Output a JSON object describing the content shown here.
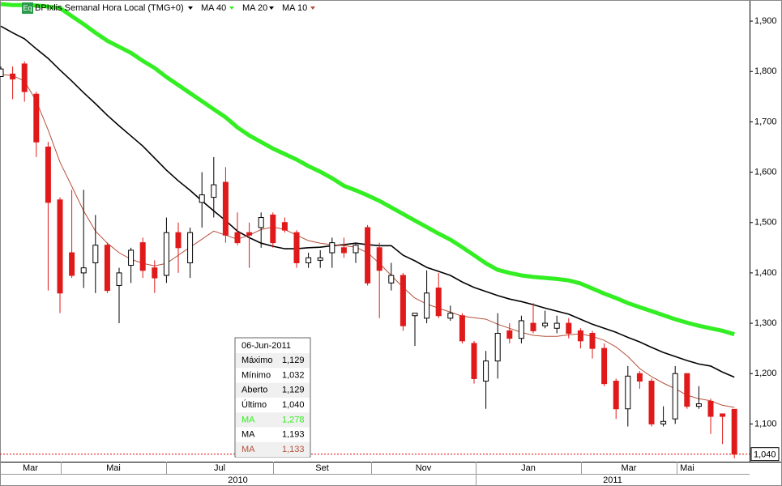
{
  "chart_data": {
    "type": "candlestick",
    "title": "BPIxlis Semanal Hora Local (TMG+0)",
    "badge": "Eq",
    "ylim": [
      1025,
      1942
    ],
    "yticks": [
      {
        "value": 1100,
        "label": "1,100"
      },
      {
        "value": 1200,
        "label": "1,200"
      },
      {
        "value": 1300,
        "label": "1,300"
      },
      {
        "value": 1400,
        "label": "1,400"
      },
      {
        "value": 1500,
        "label": "1,500"
      },
      {
        "value": 1600,
        "label": "1,600"
      },
      {
        "value": 1700,
        "label": "1,700"
      },
      {
        "value": 1800,
        "label": "1,800"
      },
      {
        "value": 1900,
        "label": "1,900"
      }
    ],
    "month_labels": [
      "Mar",
      "Mai",
      "Jul",
      "Set",
      "Nov",
      "Jan",
      "Mar",
      "Mai"
    ],
    "year_labels": [
      "2010",
      "2011"
    ],
    "up_color": "#ffffff",
    "down_color": "#e0191a",
    "open": [
      1790,
      1795,
      1815,
      1755,
      1650,
      1545,
      1440,
      1400,
      1420,
      1455,
      1375,
      1415,
      1460,
      1410,
      1395,
      1480,
      1420,
      1540,
      1550,
      1580,
      1480,
      1480,
      1490,
      1515,
      1500,
      1480,
      1420,
      1425,
      1440,
      1450,
      1440,
      1490,
      1450,
      1380,
      1395,
      1315,
      1310,
      1370,
      1310,
      1315,
      1260,
      1185,
      1225,
      1285,
      1270,
      1300,
      1295,
      1290,
      1300,
      1285,
      1280,
      1250,
      1185,
      1130,
      1200,
      1185,
      1100,
      1110,
      1200,
      1135,
      1145,
      1120,
      1129
    ],
    "high": [
      1810,
      1810,
      1820,
      1760,
      1660,
      1550,
      1565,
      1565,
      1515,
      1460,
      1410,
      1450,
      1470,
      1425,
      1510,
      1500,
      1490,
      1600,
      1630,
      1610,
      1520,
      1500,
      1520,
      1520,
      1510,
      1485,
      1440,
      1445,
      1470,
      1470,
      1460,
      1495,
      1460,
      1420,
      1400,
      1320,
      1405,
      1400,
      1335,
      1320,
      1265,
      1245,
      1320,
      1300,
      1315,
      1340,
      1325,
      1315,
      1310,
      1290,
      1285,
      1260,
      1190,
      1215,
      1205,
      1190,
      1135,
      1215,
      1200,
      1175,
      1150,
      1120,
      1129
    ],
    "low": [
      1790,
      1745,
      1740,
      1630,
      1365,
      1320,
      1390,
      1370,
      1360,
      1360,
      1300,
      1380,
      1390,
      1360,
      1380,
      1400,
      1390,
      1490,
      1510,
      1460,
      1455,
      1410,
      1450,
      1450,
      1480,
      1410,
      1410,
      1410,
      1410,
      1430,
      1420,
      1375,
      1310,
      1365,
      1285,
      1255,
      1300,
      1310,
      1305,
      1260,
      1180,
      1130,
      1190,
      1260,
      1260,
      1280,
      1290,
      1280,
      1270,
      1250,
      1230,
      1175,
      1110,
      1095,
      1170,
      1095,
      1095,
      1100,
      1130,
      1130,
      1080,
      1060,
      1032
    ],
    "close": [
      1805,
      1785,
      1760,
      1660,
      1540,
      1360,
      1395,
      1410,
      1455,
      1365,
      1400,
      1445,
      1405,
      1390,
      1480,
      1450,
      1480,
      1555,
      1575,
      1475,
      1460,
      1475,
      1510,
      1460,
      1485,
      1420,
      1430,
      1430,
      1460,
      1440,
      1455,
      1380,
      1405,
      1395,
      1295,
      1320,
      1360,
      1315,
      1320,
      1265,
      1190,
      1225,
      1280,
      1270,
      1305,
      1285,
      1300,
      1300,
      1280,
      1265,
      1250,
      1180,
      1130,
      1195,
      1185,
      1100,
      1105,
      1200,
      1135,
      1140,
      1115,
      1115,
      1040
    ],
    "series": [
      {
        "name": "MA 40",
        "color": "#33ee22",
        "values": [
          1934,
          1932,
          1932,
          1931,
          1929,
          1926,
          1910,
          1894,
          1877,
          1861,
          1849,
          1837,
          1821,
          1807,
          1789,
          1773,
          1757,
          1741,
          1725,
          1709,
          1689,
          1673,
          1660,
          1647,
          1636,
          1625,
          1612,
          1601,
          1588,
          1573,
          1564,
          1554,
          1543,
          1530,
          1517,
          1504,
          1491,
          1478,
          1466,
          1451,
          1435,
          1419,
          1406,
          1400,
          1395,
          1392,
          1390,
          1388,
          1385,
          1379,
          1369,
          1359,
          1350,
          1340,
          1332,
          1324,
          1316,
          1308,
          1301,
          1295,
          1290,
          1285,
          1278
        ]
      },
      {
        "name": "MA 20",
        "color": "#000000",
        "values": [
          1890,
          1877,
          1865,
          1845,
          1826,
          1803,
          1781,
          1758,
          1736,
          1713,
          1692,
          1672,
          1652,
          1628,
          1604,
          1583,
          1564,
          1543,
          1523,
          1504,
          1483,
          1470,
          1459,
          1453,
          1448,
          1448,
          1450,
          1451,
          1454,
          1456,
          1459,
          1456,
          1454,
          1454,
          1435,
          1424,
          1411,
          1403,
          1395,
          1382,
          1371,
          1363,
          1355,
          1348,
          1343,
          1337,
          1330,
          1324,
          1318,
          1308,
          1298,
          1290,
          1282,
          1272,
          1263,
          1252,
          1242,
          1234,
          1226,
          1219,
          1215,
          1203,
          1193
        ]
      },
      {
        "name": "MA 10",
        "color": "#b5503a",
        "values": [
          1794,
          1792,
          1781,
          1741,
          1684,
          1620,
          1572,
          1523,
          1483,
          1459,
          1440,
          1427,
          1419,
          1414,
          1419,
          1435,
          1451,
          1467,
          1483,
          1475,
          1467,
          1475,
          1486,
          1491,
          1486,
          1475,
          1464,
          1459,
          1456,
          1454,
          1451,
          1440,
          1419,
          1395,
          1371,
          1350,
          1338,
          1330,
          1322,
          1314,
          1311,
          1308,
          1298,
          1290,
          1282,
          1276,
          1274,
          1274,
          1277,
          1279,
          1274,
          1266,
          1253,
          1234,
          1210,
          1194,
          1181,
          1170,
          1157,
          1150,
          1146,
          1137,
          1133
        ]
      }
    ],
    "last_price": {
      "value": 1040,
      "label": "1,040"
    },
    "tooltip": {
      "date": "06-Jun-2011",
      "rows": [
        {
          "label": "Máximo",
          "value": "1,129"
        },
        {
          "label": "Mínimo",
          "value": "1,032"
        },
        {
          "label": "Aberto",
          "value": "1,129"
        },
        {
          "label": "Último",
          "value": "1,040"
        },
        {
          "label": "MA",
          "value": "1,278"
        },
        {
          "label": "MA",
          "value": "1,193"
        },
        {
          "label": "MA",
          "value": "1,133"
        }
      ]
    }
  }
}
